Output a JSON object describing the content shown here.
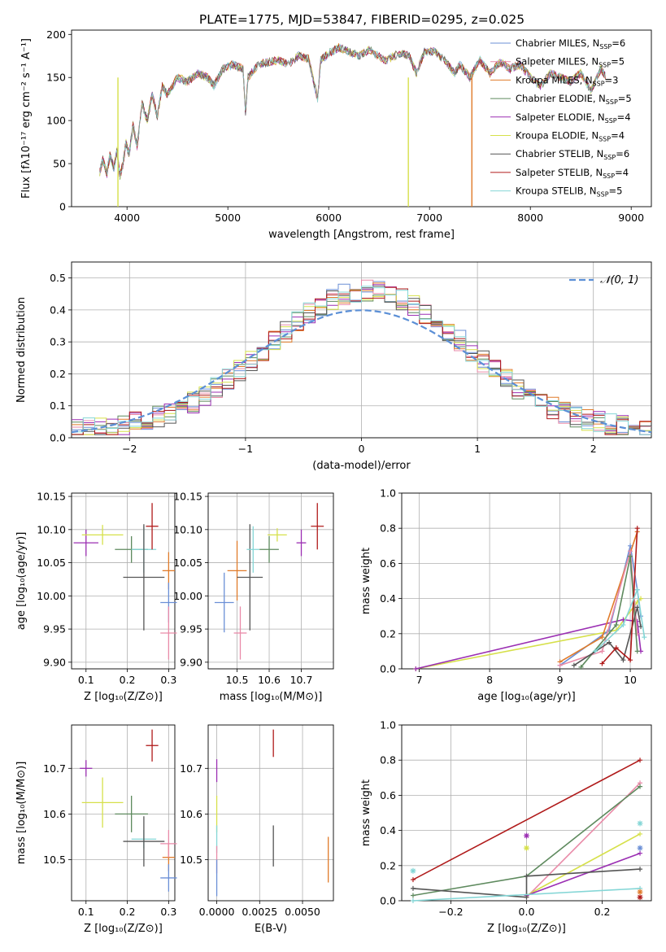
{
  "title": "PLATE=1775, MJD=53847, FIBERID=0295, z=0.025",
  "colors": {
    "chabrier_miles": "#6b8fd6",
    "salpeter_miles": "#e98aa8",
    "kroupa_miles": "#e07b2a",
    "chabrier_elodie": "#5e8a5e",
    "salpeter_elodie": "#9b2fb3",
    "kroupa_elodie": "#d6e04a",
    "chabrier_stelib": "#555555",
    "salpeter_stelib": "#b01a1a",
    "kroupa_stelib": "#84d6d6"
  },
  "legend": [
    {
      "key": "chabrier_miles",
      "label": "Chabrier MILES, N",
      "sub": "SSP",
      "tail": "=6"
    },
    {
      "key": "salpeter_miles",
      "label": "Salpeter MILES, N",
      "sub": "SSP",
      "tail": "=5"
    },
    {
      "key": "kroupa_miles",
      "label": "Kroupa MILES, N",
      "sub": "SSP",
      "tail": "=3"
    },
    {
      "key": "chabrier_elodie",
      "label": "Chabrier ELODIE, N",
      "sub": "SSP",
      "tail": "=5"
    },
    {
      "key": "salpeter_elodie",
      "label": "Salpeter ELODIE, N",
      "sub": "SSP",
      "tail": "=4"
    },
    {
      "key": "kroupa_elodie",
      "label": "Kroupa ELODIE, N",
      "sub": "SSP",
      "tail": "=4"
    },
    {
      "key": "chabrier_stelib",
      "label": "Chabrier STELIB, N",
      "sub": "SSP",
      "tail": "=6"
    },
    {
      "key": "salpeter_stelib",
      "label": "Salpeter STELIB, N",
      "sub": "SSP",
      "tail": "=4"
    },
    {
      "key": "kroupa_stelib",
      "label": "Kroupa STELIB, N",
      "sub": "SSP",
      "tail": "=5"
    }
  ],
  "chart_data": [
    {
      "id": "spectrum",
      "type": "line",
      "xlabel": "wavelength [Angstrom, rest frame]",
      "ylabel": "Flux [fλ10⁻¹⁷ erg cm⁻² s⁻¹ A⁻¹]",
      "xlim": [
        3450,
        9200
      ],
      "ylim": [
        0,
        205
      ],
      "xticks": [
        4000,
        5000,
        6000,
        7000,
        8000,
        9000
      ],
      "yticks": [
        0,
        50,
        100,
        150,
        200
      ],
      "spectrum_points": [
        [
          3730,
          40
        ],
        [
          3760,
          55
        ],
        [
          3800,
          38
        ],
        [
          3830,
          60
        ],
        [
          3870,
          45
        ],
        [
          3900,
          65
        ],
        [
          3930,
          35
        ],
        [
          3960,
          50
        ],
        [
          3990,
          75
        ],
        [
          4020,
          60
        ],
        [
          4060,
          95
        ],
        [
          4100,
          70
        ],
        [
          4150,
          120
        ],
        [
          4200,
          100
        ],
        [
          4250,
          130
        ],
        [
          4300,
          105
        ],
        [
          4350,
          140
        ],
        [
          4400,
          130
        ],
        [
          4500,
          150
        ],
        [
          4600,
          145
        ],
        [
          4700,
          155
        ],
        [
          4800,
          150
        ],
        [
          4861,
          140
        ],
        [
          4950,
          160
        ],
        [
          5050,
          165
        ],
        [
          5150,
          160
        ],
        [
          5175,
          110
        ],
        [
          5200,
          150
        ],
        [
          5300,
          165
        ],
        [
          5400,
          168
        ],
        [
          5500,
          170
        ],
        [
          5600,
          165
        ],
        [
          5700,
          175
        ],
        [
          5800,
          172
        ],
        [
          5890,
          125
        ],
        [
          5920,
          170
        ],
        [
          6000,
          178
        ],
        [
          6100,
          185
        ],
        [
          6200,
          180
        ],
        [
          6300,
          175
        ],
        [
          6400,
          182
        ],
        [
          6563,
          170
        ],
        [
          6700,
          178
        ],
        [
          6800,
          175
        ],
        [
          6870,
          155
        ],
        [
          6950,
          180
        ],
        [
          7050,
          180
        ],
        [
          7150,
          170
        ],
        [
          7250,
          155
        ],
        [
          7300,
          165
        ],
        [
          7400,
          150
        ],
        [
          7500,
          170
        ],
        [
          7600,
          155
        ],
        [
          7700,
          168
        ],
        [
          7800,
          160
        ],
        [
          7900,
          165
        ],
        [
          8000,
          150
        ],
        [
          8100,
          140
        ],
        [
          8200,
          155
        ],
        [
          8300,
          150
        ],
        [
          8400,
          145
        ],
        [
          8500,
          155
        ],
        [
          8600,
          135
        ],
        [
          8700,
          160
        ],
        [
          8750,
          150
        ]
      ],
      "drops": [
        {
          "key": "kroupa_elodie",
          "x": 3910
        },
        {
          "key": "kroupa_elodie",
          "x": 6790
        },
        {
          "key": "kroupa_miles",
          "x": 7420
        }
      ]
    },
    {
      "id": "residuals",
      "type": "area",
      "xlabel": "(data-model)/error",
      "ylabel": "Normed distribution",
      "xlim": [
        -2.5,
        2.5
      ],
      "ylim": [
        0,
        0.55
      ],
      "xticks": [
        -2,
        -1,
        0,
        1,
        2
      ],
      "yticks": [
        0.0,
        0.1,
        0.2,
        0.3,
        0.4,
        0.5
      ],
      "legend_label": "𝒩(0, 1)",
      "gaussian_color": "#5b8fd6"
    },
    {
      "id": "age_vs_Z",
      "type": "scatter",
      "xlabel": "Z [log₁₀(Z/Z⊙)]",
      "ylabel": "age  [log₁₀(age/yr)]",
      "xlim": [
        0.065,
        0.315
      ],
      "ylim": [
        9.89,
        10.155
      ],
      "xticks": [
        0.1,
        0.2,
        0.3
      ],
      "yticks": [
        9.9,
        9.95,
        10.0,
        10.05,
        10.1,
        10.15
      ],
      "points": [
        {
          "key": "salpeter_elodie",
          "x": 0.1,
          "y": 10.08,
          "xe": 0.03,
          "ye": 0.02
        },
        {
          "key": "kroupa_elodie",
          "x": 0.14,
          "y": 10.092,
          "xe": 0.05,
          "ye": 0.015
        },
        {
          "key": "chabrier_elodie",
          "x": 0.21,
          "y": 10.07,
          "xe": 0.04,
          "ye": 0.02
        },
        {
          "key": "kroupa_stelib",
          "x": 0.24,
          "y": 10.07,
          "xe": 0.03,
          "ye": 0.035
        },
        {
          "key": "salpeter_stelib",
          "x": 0.26,
          "y": 10.105,
          "xe": 0.015,
          "ye": 0.035
        },
        {
          "key": "chabrier_stelib",
          "x": 0.24,
          "y": 10.028,
          "xe": 0.05,
          "ye": 0.08
        },
        {
          "key": "kroupa_miles",
          "x": 0.3,
          "y": 10.038,
          "xe": 0.015,
          "ye": 0.028
        },
        {
          "key": "chabrier_miles",
          "x": 0.3,
          "y": 9.99,
          "xe": 0.02,
          "ye": 0.03
        },
        {
          "key": "salpeter_miles",
          "x": 0.3,
          "y": 9.944,
          "xe": 0.02,
          "ye": 0.04
        }
      ]
    },
    {
      "id": "age_vs_mass",
      "type": "scatter",
      "xlabel": "mass [log₁₀(M/M⊙)]",
      "xlim": [
        10.41,
        10.8
      ],
      "ylim": [
        9.89,
        10.155
      ],
      "xticks": [
        10.5,
        10.6,
        10.7
      ],
      "yticks": [
        9.9,
        9.95,
        10.0,
        10.05,
        10.1,
        10.15
      ],
      "points": [
        {
          "key": "chabrier_miles",
          "x": 10.46,
          "y": 9.99,
          "xe": 0.03,
          "ye": 0.045
        },
        {
          "key": "salpeter_miles",
          "x": 10.51,
          "y": 9.944,
          "xe": 0.02,
          "ye": 0.04
        },
        {
          "key": "kroupa_miles",
          "x": 10.5,
          "y": 10.038,
          "xe": 0.03,
          "ye": 0.045
        },
        {
          "key": "chabrier_stelib",
          "x": 10.54,
          "y": 10.028,
          "xe": 0.04,
          "ye": 0.08
        },
        {
          "key": "kroupa_stelib",
          "x": 10.55,
          "y": 10.07,
          "xe": 0.02,
          "ye": 0.035
        },
        {
          "key": "chabrier_elodie",
          "x": 10.6,
          "y": 10.07,
          "xe": 0.03,
          "ye": 0.02
        },
        {
          "key": "kroupa_elodie",
          "x": 10.625,
          "y": 10.092,
          "xe": 0.03,
          "ye": 0.01
        },
        {
          "key": "salpeter_elodie",
          "x": 10.7,
          "y": 10.08,
          "xe": 0.015,
          "ye": 0.02
        },
        {
          "key": "salpeter_stelib",
          "x": 10.75,
          "y": 10.105,
          "xe": 0.02,
          "ye": 0.035
        }
      ]
    },
    {
      "id": "weight_vs_age",
      "type": "line",
      "xlabel": "age  [log₁₀(age/yr)]",
      "ylabel": "mass weight",
      "xlim": [
        6.75,
        10.3
      ],
      "ylim": [
        0,
        1.0
      ],
      "xticks": [
        7,
        8,
        9,
        10
      ],
      "yticks": [
        0.0,
        0.2,
        0.4,
        0.6,
        0.8,
        1.0
      ],
      "series": [
        {
          "key": "kroupa_elodie",
          "pts": [
            [
              6.95,
              0.0
            ],
            [
              9.8,
              0.22
            ],
            [
              10.1,
              0.38
            ],
            [
              10.15,
              0.4
            ]
          ]
        },
        {
          "key": "salpeter_elodie",
          "pts": [
            [
              6.95,
              0.0
            ],
            [
              9.9,
              0.28
            ],
            [
              10.1,
              0.27
            ],
            [
              10.15,
              0.1
            ]
          ]
        },
        {
          "key": "chabrier_miles",
          "pts": [
            [
              9.0,
              0.02
            ],
            [
              9.7,
              0.22
            ],
            [
              10.0,
              0.7
            ],
            [
              10.1,
              0.45
            ],
            [
              10.15,
              0.3
            ]
          ]
        },
        {
          "key": "kroupa_miles",
          "pts": [
            [
              9.0,
              0.04
            ],
            [
              9.6,
              0.18
            ],
            [
              10.1,
              0.78
            ]
          ]
        },
        {
          "key": "salpeter_miles",
          "pts": [
            [
              9.0,
              0.02
            ],
            [
              9.6,
              0.1
            ],
            [
              10.0,
              0.67
            ],
            [
              10.1,
              0.2
            ]
          ]
        },
        {
          "key": "chabrier_elodie",
          "pts": [
            [
              9.3,
              0.01
            ],
            [
              9.8,
              0.25
            ],
            [
              10.0,
              0.64
            ],
            [
              10.1,
              0.1
            ]
          ]
        },
        {
          "key": "chabrier_stelib",
          "pts": [
            [
              9.2,
              0.02
            ],
            [
              9.7,
              0.15
            ],
            [
              9.9,
              0.05
            ],
            [
              10.1,
              0.35
            ],
            [
              10.15,
              0.24
            ]
          ]
        },
        {
          "key": "salpeter_stelib",
          "pts": [
            [
              9.6,
              0.03
            ],
            [
              9.8,
              0.12
            ],
            [
              10.0,
              0.05
            ],
            [
              10.1,
              0.8
            ]
          ]
        },
        {
          "key": "kroupa_stelib",
          "pts": [
            [
              9.5,
              0.1
            ],
            [
              9.9,
              0.25
            ],
            [
              10.1,
              0.45
            ],
            [
              10.2,
              0.18
            ]
          ]
        }
      ]
    },
    {
      "id": "mass_vs_Z",
      "type": "scatter",
      "xlabel": "Z [log₁₀(Z/Z⊙)]",
      "ylabel": "mass [log₁₀(M/M⊙)]",
      "xlim": [
        0.065,
        0.315
      ],
      "ylim": [
        10.41,
        10.795
      ],
      "xticks": [
        0.1,
        0.2,
        0.3
      ],
      "yticks": [
        10.5,
        10.6,
        10.7
      ],
      "points": [
        {
          "key": "salpeter_elodie",
          "x": 0.1,
          "y": 10.7,
          "xe": 0.015,
          "ye": 0.018
        },
        {
          "key": "kroupa_elodie",
          "x": 0.14,
          "y": 10.625,
          "xe": 0.05,
          "ye": 0.055
        },
        {
          "key": "chabrier_elodie",
          "x": 0.21,
          "y": 10.6,
          "xe": 0.04,
          "ye": 0.04
        },
        {
          "key": "kroupa_stelib",
          "x": 0.24,
          "y": 10.545,
          "xe": 0.03,
          "ye": 0.02
        },
        {
          "key": "salpeter_stelib",
          "x": 0.26,
          "y": 10.75,
          "xe": 0.015,
          "ye": 0.035
        },
        {
          "key": "chabrier_stelib",
          "x": 0.24,
          "y": 10.54,
          "xe": 0.05,
          "ye": 0.055
        },
        {
          "key": "kroupa_miles",
          "x": 0.3,
          "y": 10.505,
          "xe": 0.015,
          "ye": 0.03
        },
        {
          "key": "chabrier_miles",
          "x": 0.3,
          "y": 10.46,
          "xe": 0.02,
          "ye": 0.03
        },
        {
          "key": "salpeter_miles",
          "x": 0.3,
          "y": 10.535,
          "xe": 0.02,
          "ye": 0.03
        }
      ]
    },
    {
      "id": "mass_vs_ebv",
      "type": "scatter",
      "xlabel": "E(B-V)",
      "xlim": [
        -0.0005,
        0.0068
      ],
      "ylim": [
        10.41,
        10.795
      ],
      "xticks": [
        0.0,
        0.0025,
        0.005
      ],
      "xticklabels": [
        "0.0000",
        "0.0025",
        "0.0050"
      ],
      "yticks": [
        10.5,
        10.6,
        10.7
      ],
      "points": [
        {
          "key": "salpeter_elodie",
          "x": 0.0,
          "y": 10.695,
          "xe": 0.0,
          "ye": 0.025
        },
        {
          "key": "kroupa_elodie",
          "x": 0.0,
          "y": 10.6,
          "xe": 0.0,
          "ye": 0.04
        },
        {
          "key": "kroupa_stelib",
          "x": 0.0,
          "y": 10.545,
          "xe": 0.0,
          "ye": 0.03
        },
        {
          "key": "salpeter_miles",
          "x": 0.0,
          "y": 10.5,
          "xe": 0.0,
          "ye": 0.03
        },
        {
          "key": "chabrier_miles",
          "x": 0.0,
          "y": 10.46,
          "xe": 0.0,
          "ye": 0.04
        },
        {
          "key": "salpeter_stelib",
          "x": 0.0033,
          "y": 10.755,
          "xe": 0.0,
          "ye": 0.03
        },
        {
          "key": "chabrier_stelib",
          "x": 0.0033,
          "y": 10.53,
          "xe": 0.0,
          "ye": 0.045
        },
        {
          "key": "kroupa_miles",
          "x": 0.0065,
          "y": 10.5,
          "xe": 0.0,
          "ye": 0.05
        }
      ]
    },
    {
      "id": "weight_vs_Z",
      "type": "line",
      "xlabel": "Z [log₁₀(Z/Z⊙)]",
      "ylabel": "mass weight",
      "xlim": [
        -0.33,
        0.33
      ],
      "ylim": [
        0,
        1.0
      ],
      "xticks": [
        -0.2,
        0.0,
        0.2
      ],
      "yticks": [
        0.0,
        0.2,
        0.4,
        0.6,
        0.8,
        1.0
      ],
      "series": [
        {
          "key": "salpeter_stelib",
          "pts": [
            [
              -0.3,
              0.12
            ],
            [
              0.3,
              0.8
            ]
          ]
        },
        {
          "key": "salpeter_miles",
          "pts": [
            [
              0.0,
              0.02
            ],
            [
              0.3,
              0.67
            ]
          ]
        },
        {
          "key": "chabrier_elodie",
          "pts": [
            [
              -0.3,
              0.03
            ],
            [
              0.0,
              0.14
            ],
            [
              0.3,
              0.65
            ]
          ]
        },
        {
          "key": "kroupa_elodie",
          "pts": [
            [
              0.0,
              0.03
            ],
            [
              0.3,
              0.38
            ]
          ]
        },
        {
          "key": "salpeter_elodie",
          "pts": [
            [
              0.0,
              0.03
            ],
            [
              0.3,
              0.27
            ]
          ]
        },
        {
          "key": "chabrier_stelib",
          "pts": [
            [
              -0.3,
              0.07
            ],
            [
              0.0,
              0.02
            ],
            [
              0.0,
              0.14
            ],
            [
              0.3,
              0.18
            ]
          ]
        },
        {
          "key": "kroupa_stelib",
          "pts": [
            [
              -0.3,
              0.0
            ],
            [
              0.3,
              0.07
            ]
          ]
        }
      ],
      "markers": [
        {
          "key": "salpeter_elodie",
          "x": 0.0,
          "y": 0.37
        },
        {
          "key": "kroupa_elodie",
          "x": 0.0,
          "y": 0.3
        },
        {
          "key": "kroupa_stelib",
          "x": -0.3,
          "y": 0.17
        },
        {
          "key": "salpeter_stelib",
          "x": 0.3,
          "y": 0.02
        },
        {
          "key": "kroupa_stelib",
          "x": 0.3,
          "y": 0.44
        },
        {
          "key": "chabrier_miles",
          "x": 0.3,
          "y": 0.3
        },
        {
          "key": "kroupa_miles",
          "x": 0.3,
          "y": 0.05
        }
      ]
    }
  ]
}
